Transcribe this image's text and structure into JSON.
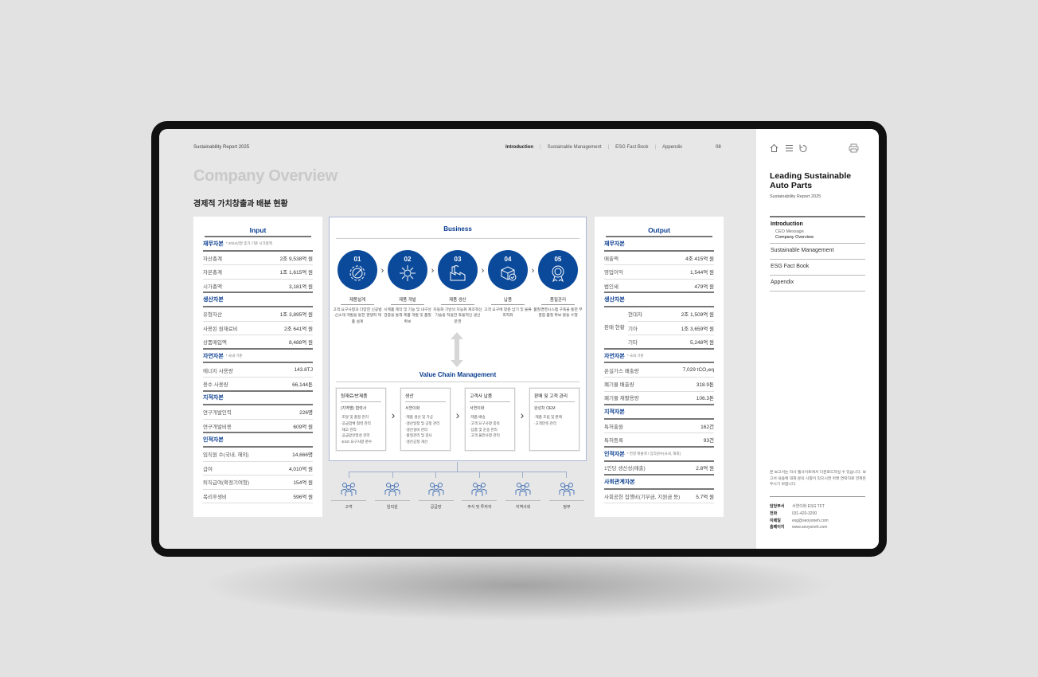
{
  "header": {
    "report_label": "Sustainability Report 2025",
    "nav": [
      "Introduction",
      "Sustainable Management",
      "ESG Fact Book",
      "Appendix"
    ],
    "nav_active": "Introduction",
    "page_number": "08",
    "title": "Company Overview",
    "subtitle": "경제적 가치창출과 배분 현황"
  },
  "colors": {
    "accent": "#0b4a9b",
    "heading_blue": "#0a3d8f",
    "title_grey": "#c9c9c9"
  },
  "input": {
    "title": "Input",
    "sections": [
      {
        "heading": "재무자본",
        "note": "* 2024년말 종가 기준 시가총액",
        "items": [
          {
            "label": "자산총계",
            "value": "2조 9,538억 원"
          },
          {
            "label": "자본총계",
            "value": "1조 1,615억 원"
          },
          {
            "label": "시가총액",
            "value": "3,181억 원"
          }
        ]
      },
      {
        "heading": "생산자본",
        "items": [
          {
            "label": "유형자산",
            "value": "1조 3,895억 원"
          },
          {
            "label": "사용된 원재료비",
            "value": "2조 641억 원"
          },
          {
            "label": "상품매입액",
            "value": "8,488억 원"
          }
        ]
      },
      {
        "heading": "자연자본",
        "note": "* 국내 기준",
        "items": [
          {
            "label": "에너지 사용량",
            "value": "143.8TJ"
          },
          {
            "label": "용수 사용량",
            "value": "66,144톤"
          }
        ]
      },
      {
        "heading": "지적자본",
        "items": [
          {
            "label": "연구개발인력",
            "value": "226명"
          },
          {
            "label": "연구개발비용",
            "value": "609억 원"
          }
        ]
      },
      {
        "heading": "인적자본",
        "items": [
          {
            "label": "임직원 수(국내, 해외)",
            "value": "14,666명"
          },
          {
            "label": "급여",
            "value": "4,010억 원"
          },
          {
            "label": "퇴직급여(확정기여형)",
            "value": "154억 원"
          },
          {
            "label": "복리후생비",
            "value": "596억 원"
          }
        ]
      }
    ]
  },
  "business": {
    "title": "Business",
    "steps": [
      {
        "num": "01",
        "icon": "gear-wrench-icon",
        "name": "제품설계",
        "desc": "고객 요구사항과 다양한 신공법·신소재 개발을 통한 경쟁력 제품 설계"
      },
      {
        "num": "02",
        "icon": "network-gear-icon",
        "name": "제품 개발",
        "desc": "시제품 제작 및 기능 및 내구성 검증을 통해 제품 개발 및 품질확보"
      },
      {
        "num": "03",
        "icon": "factory-icon",
        "name": "제품 생산",
        "desc": "자동화 기반의 지능화 제조혁신기술을 적용한 효율적인 생산 운영"
      },
      {
        "num": "04",
        "icon": "box-check-icon",
        "name": "납품",
        "desc": "고객 요구에 맞춘 납기 및 물류 최적화"
      },
      {
        "num": "05",
        "icon": "award-badge-icon",
        "name": "품질관리",
        "desc": "품질경영시스템 구축을 통한 무결점 품질 확보 활동 수행"
      }
    ],
    "vcm_title": "Value Chain Management",
    "value_chain": [
      {
        "title": "원재료/반제품",
        "who": "(지역별) 협력사",
        "items": [
          "·조달 및 품질 관리",
          "·공급업체 협력 관리",
          "·재고 관리",
          "·공급망안정성 관리",
          "·ESG 요구사항 준수"
        ]
      },
      {
        "title": "생산",
        "who": "서연이화",
        "items": [
          "·제품 생산 및 가공",
          "·생산일정 및 공정 관리",
          "·생산설비 관리",
          "·품질관리 및 검사",
          "·생산공정 개선"
        ]
      },
      {
        "title": "고객사 납품",
        "who": "서연이화",
        "items": [
          "·제품 배송",
          "·고객 요구사항 충족",
          "·납품 및 운송 관리",
          "·고객 불만사항 관리"
        ]
      },
      {
        "title": "판매 및 고객 관리",
        "who": "완성차 OEM",
        "items": [
          "·제품 조립 및 판매",
          "·고객만족 관리"
        ]
      }
    ],
    "stakeholders": [
      {
        "label": "고객",
        "icon": "people-group-icon"
      },
      {
        "label": "임직원",
        "icon": "meeting-icon"
      },
      {
        "label": "공급망",
        "icon": "supply-cycle-icon"
      },
      {
        "label": "주식 및 투자자",
        "icon": "investor-presentation-icon"
      },
      {
        "label": "지역사회",
        "icon": "community-heart-icon"
      },
      {
        "label": "정부",
        "icon": "podium-speaker-icon"
      }
    ]
  },
  "output": {
    "title": "Output",
    "sections": [
      {
        "heading": "재무자본",
        "items": [
          {
            "label": "매출액",
            "value": "4조 415억 원"
          },
          {
            "label": "영업이익",
            "value": "1,544억 원"
          },
          {
            "label": "법인세",
            "value": "479억 원"
          }
        ]
      },
      {
        "heading": "생산자본",
        "group": "판매 현황",
        "items": [
          {
            "label": "현대차",
            "value": "2조 1,509억 원"
          },
          {
            "label": "기아",
            "value": "1조 3,659억 원"
          },
          {
            "label": "기타",
            "value": "5,248억 원"
          }
        ]
      },
      {
        "heading": "자연자본",
        "note": "* 국내 기준",
        "items": [
          {
            "label": "온실가스 배출량",
            "value": "7,029 tCO₂eq"
          },
          {
            "label": "폐기물 배출량",
            "value": "318.9톤"
          },
          {
            "label": "폐기물 재활용량",
            "value": "106.3톤"
          }
        ]
      },
      {
        "heading": "지적자본",
        "items": [
          {
            "label": "특허출원",
            "value": "162건"
          },
          {
            "label": "특허등록",
            "value": "93건"
          }
        ]
      },
      {
        "heading": "인적자본",
        "note": "* 연결 매출액 / 임직원수(국내, 해외)",
        "items": [
          {
            "label": "1인당 생산성(매출)",
            "value": "2.8억 원"
          }
        ]
      },
      {
        "heading": "사회관계자본",
        "items": [
          {
            "label": "사회공헌 집행비(기부금, 지원금 등)",
            "value": "5.7억 원"
          }
        ]
      }
    ]
  },
  "sidebar": {
    "icons": [
      "home-icon",
      "menu-icon",
      "refresh-icon",
      "print-icon"
    ],
    "title": "Leading Sustainable Auto Parts",
    "subtitle": "Sustainability Report 2025",
    "menu": {
      "intro": "Introduction",
      "intro_children": [
        "CEO Message",
        "Company Overview"
      ],
      "items": [
        "Sustainable Management",
        "ESG Fact Book",
        "Appendix"
      ]
    },
    "notice": "본 보고서는 자사 웹사이트에서 다운로드하실 수 있습니다. 보고서 내용에 대해 문의 사항이 있으시면 아래 연락처로 언제든 주시기 바랍니다.",
    "contacts": [
      {
        "key": "담당부서",
        "value": "서연이화 ESG TFT"
      },
      {
        "key": "전화",
        "value": "031-420-3200"
      },
      {
        "key": "이메일",
        "value": "esg@seoyoneh.com"
      },
      {
        "key": "홈페이지",
        "value": "www.seoyoneh.com"
      }
    ]
  }
}
